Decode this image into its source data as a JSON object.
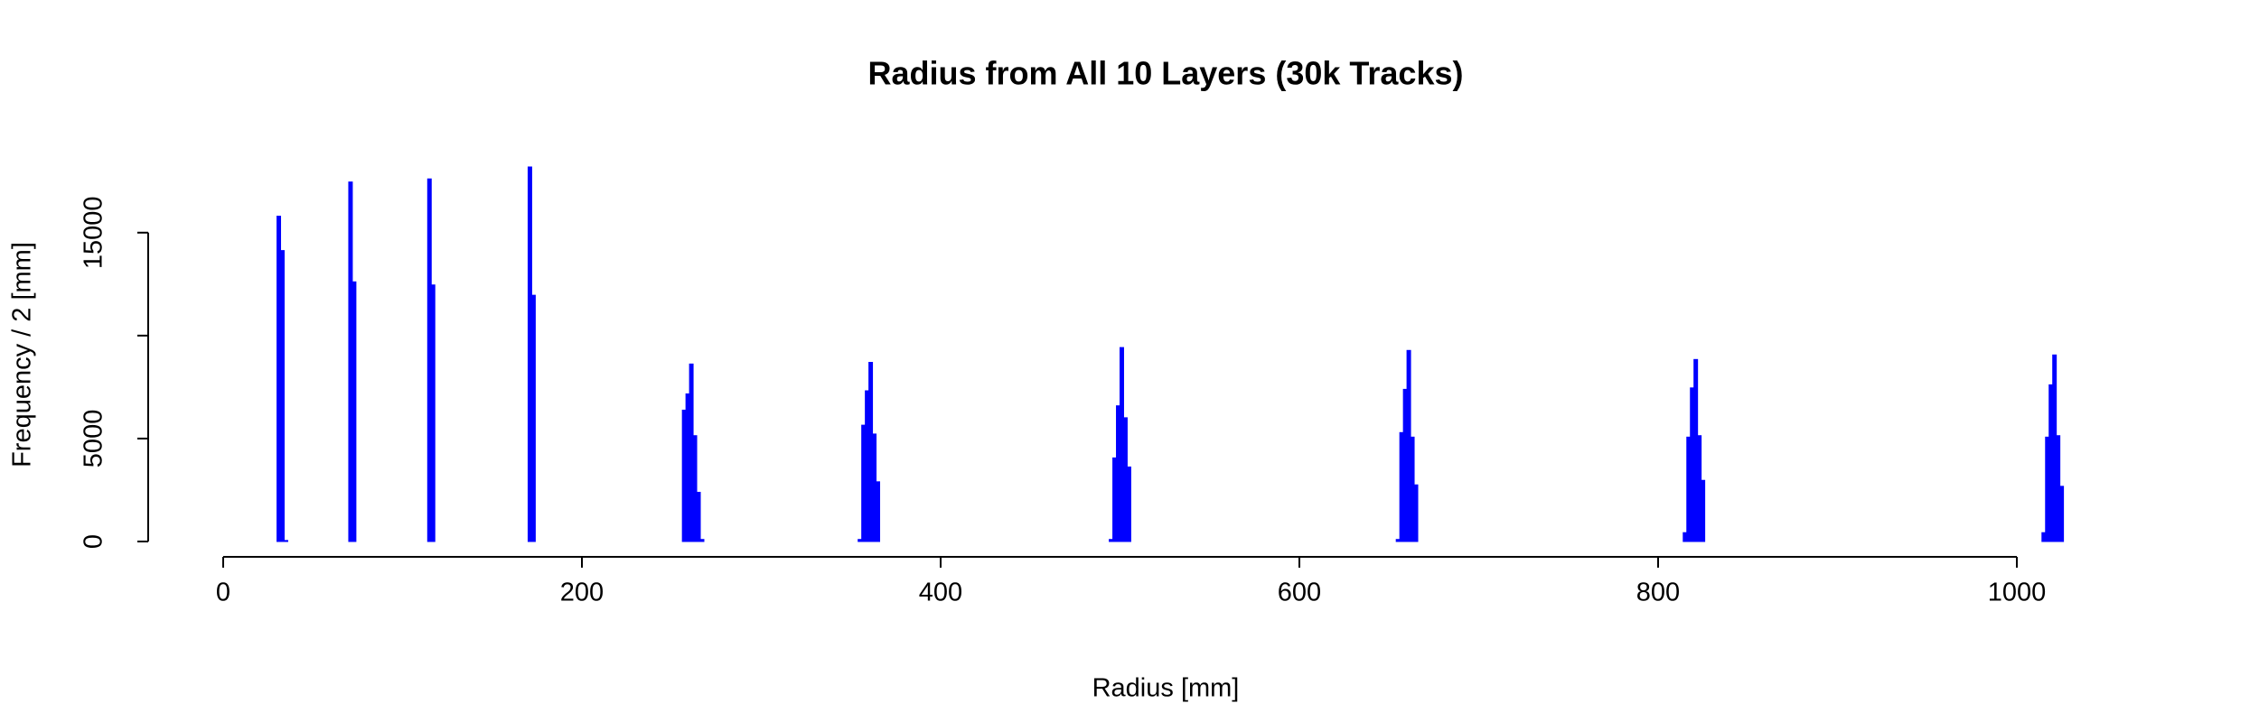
{
  "chart_data": {
    "type": "histogram",
    "title": "Radius from All 10 Layers (30k Tracks)",
    "x_label": "Radius [mm]",
    "y_label": "Frequency / 2 [mm]",
    "color": "#0000ff",
    "bin_width": 2,
    "x": [
      31,
      33,
      35,
      71,
      73,
      115,
      117,
      171,
      173,
      257,
      259,
      261,
      263,
      265,
      267,
      355,
      357,
      359,
      361,
      363,
      365,
      495,
      497,
      499,
      501,
      503,
      505,
      655,
      657,
      659,
      661,
      663,
      665,
      815,
      817,
      819,
      821,
      823,
      825,
      1015,
      1017,
      1019,
      1021,
      1023,
      1025
    ],
    "values": [
      15800,
      14130,
      50,
      17460,
      12610,
      17610,
      12460,
      18190,
      11960,
      6380,
      7170,
      8620,
      5140,
      2390,
      100,
      100,
      5650,
      7320,
      8700,
      5220,
      2900,
      100,
      4060,
      6590,
      9420,
      6010,
      3620,
      100,
      5290,
      7390,
      9280,
      5070,
      2750,
      430,
      5070,
      7460,
      8840,
      5140,
      2970,
      430,
      5070,
      7610,
      9060,
      5140,
      2680
    ],
    "xlim": [
      0,
      1000
    ],
    "xticks": [
      0,
      200,
      400,
      600,
      800,
      1000
    ],
    "ylim": [
      0,
      18190
    ],
    "yticks": [
      0,
      5000,
      {
        "value": 10000,
        "label": null
      },
      15000
    ]
  }
}
